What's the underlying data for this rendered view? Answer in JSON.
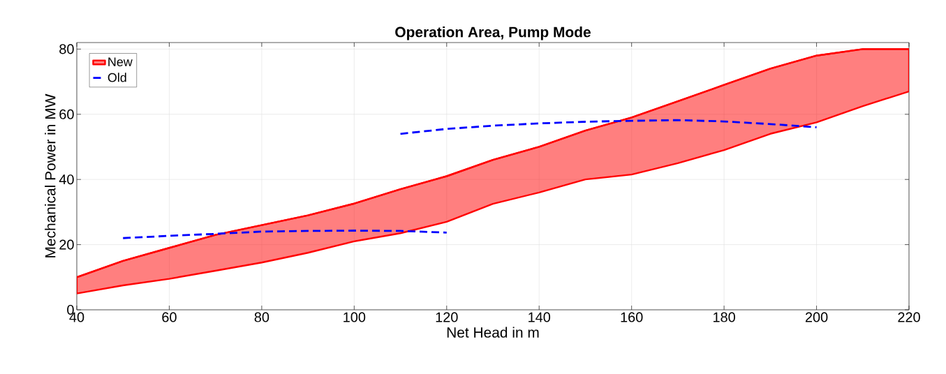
{
  "chart_data": {
    "type": "line",
    "title": "Operation Area, Pump Mode",
    "xlabel": "Net Head in m",
    "ylabel": "Mechanical Power in MW",
    "xlim": [
      40,
      220
    ],
    "xticks": [
      40,
      60,
      80,
      100,
      120,
      140,
      160,
      180,
      200,
      220
    ],
    "ylim": [
      0,
      82
    ],
    "yticks": [
      0,
      20,
      40,
      60,
      80
    ],
    "grid": true,
    "legend": "top left",
    "series": [
      {
        "name": "New",
        "color": "#ff0000",
        "x": [
          40,
          50,
          60,
          70,
          80,
          90,
          100,
          110,
          120,
          130,
          140,
          150,
          160,
          170,
          180,
          190,
          200,
          210,
          220
        ],
        "values": [
          10,
          15,
          19,
          23,
          26,
          29,
          32.6,
          37,
          41,
          46,
          50,
          55,
          59,
          64,
          69,
          74,
          78,
          80,
          80
        ],
        "lower": [
          5,
          7.5,
          9.5,
          12,
          14.5,
          17.5,
          21,
          23.5,
          27,
          32.5,
          36,
          40,
          41.5,
          45,
          49,
          54,
          57.5,
          62.5,
          67
        ],
        "upper": [
          10,
          15,
          19,
          23,
          26,
          29,
          32.6,
          37,
          41,
          46,
          50,
          55,
          59,
          64,
          69,
          74,
          78,
          80,
          80
        ]
      },
      {
        "name": "Old",
        "type": "line",
        "color": "#0000ff",
        "line_style": "dashed",
        "x": [
          50,
          60,
          70,
          80,
          90,
          100,
          110,
          120,
          115,
          110,
          120,
          130,
          140,
          150,
          160,
          170,
          180,
          190,
          200
        ],
        "values": [
          22,
          22.7,
          23.3,
          24,
          24.2,
          24.3,
          24.2,
          23.7,
          null,
          54,
          55.5,
          56.5,
          57.2,
          57.7,
          58,
          58.2,
          57.8,
          57,
          56
        ]
      }
    ]
  }
}
